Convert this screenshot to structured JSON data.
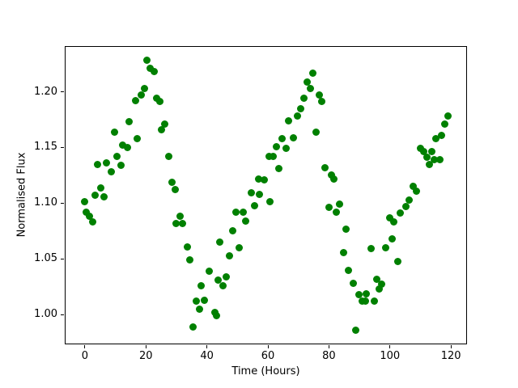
{
  "figure": {
    "background": "#ffffff",
    "frame_color": "#000000"
  },
  "chart_data": {
    "type": "scatter",
    "title": "",
    "xlabel": "Time (Hours)",
    "ylabel": "Normalised Flux",
    "xlim": [
      -6.61,
      125.0
    ],
    "ylim": [
      0.9733,
      1.241
    ],
    "grid": false,
    "legend": "none",
    "xticks": [
      0,
      20,
      40,
      60,
      80,
      100,
      120
    ],
    "xtick_labels": [
      "0",
      "20",
      "40",
      "60",
      "80",
      "100",
      "120"
    ],
    "yticks": [
      1.0,
      1.05,
      1.1,
      1.15,
      1.2
    ],
    "ytick_labels": [
      "1.00",
      "1.05",
      "1.10",
      "1.15",
      "1.20"
    ],
    "marker_color": "#008000",
    "marker_diameter_px": 9,
    "points": [
      [
        0.0,
        1.101
      ],
      [
        0.5,
        1.092
      ],
      [
        1.5,
        1.088
      ],
      [
        2.5,
        1.083
      ],
      [
        3.4,
        1.107
      ],
      [
        4.2,
        1.135
      ],
      [
        5.3,
        1.114
      ],
      [
        6.3,
        1.106
      ],
      [
        7.1,
        1.136
      ],
      [
        8.6,
        1.128
      ],
      [
        9.6,
        1.164
      ],
      [
        10.4,
        1.142
      ],
      [
        11.7,
        1.134
      ],
      [
        12.3,
        1.152
      ],
      [
        13.9,
        1.15
      ],
      [
        14.5,
        1.173
      ],
      [
        16.5,
        1.192
      ],
      [
        17.1,
        1.158
      ],
      [
        18.4,
        1.197
      ],
      [
        19.5,
        1.203
      ],
      [
        20.4,
        1.228
      ],
      [
        21.5,
        1.221
      ],
      [
        22.6,
        1.218
      ],
      [
        23.5,
        1.194
      ],
      [
        24.7,
        1.191
      ],
      [
        25.2,
        1.166
      ],
      [
        26.1,
        1.171
      ],
      [
        27.4,
        1.142
      ],
      [
        28.5,
        1.119
      ],
      [
        29.5,
        1.112
      ],
      [
        30.0,
        1.082
      ],
      [
        31.1,
        1.088
      ],
      [
        32.0,
        1.082
      ],
      [
        33.6,
        1.061
      ],
      [
        34.5,
        1.049
      ],
      [
        35.4,
        0.989
      ],
      [
        36.6,
        1.012
      ],
      [
        37.6,
        1.005
      ],
      [
        38.1,
        1.026
      ],
      [
        39.2,
        1.013
      ],
      [
        40.8,
        1.039
      ],
      [
        42.6,
        1.002
      ],
      [
        43.1,
        0.999
      ],
      [
        43.6,
        1.031
      ],
      [
        44.3,
        1.065
      ],
      [
        45.2,
        1.026
      ],
      [
        46.3,
        1.034
      ],
      [
        47.3,
        1.053
      ],
      [
        48.5,
        1.075
      ],
      [
        49.6,
        1.092
      ],
      [
        50.7,
        1.06
      ],
      [
        51.8,
        1.092
      ],
      [
        52.6,
        1.084
      ],
      [
        54.5,
        1.109
      ],
      [
        55.7,
        1.098
      ],
      [
        57.0,
        1.122
      ],
      [
        57.2,
        1.108
      ],
      [
        58.9,
        1.121
      ],
      [
        60.3,
        1.142
      ],
      [
        60.6,
        1.101
      ],
      [
        61.8,
        1.142
      ],
      [
        62.7,
        1.151
      ],
      [
        63.6,
        1.131
      ],
      [
        64.7,
        1.158
      ],
      [
        65.9,
        1.149
      ],
      [
        66.8,
        1.174
      ],
      [
        68.4,
        1.159
      ],
      [
        69.7,
        1.178
      ],
      [
        70.8,
        1.185
      ],
      [
        71.7,
        1.194
      ],
      [
        72.8,
        1.209
      ],
      [
        74.0,
        1.203
      ],
      [
        74.7,
        1.217
      ],
      [
        75.7,
        1.164
      ],
      [
        76.8,
        1.197
      ],
      [
        77.7,
        1.191
      ],
      [
        78.8,
        1.132
      ],
      [
        79.9,
        1.096
      ],
      [
        80.7,
        1.125
      ],
      [
        81.7,
        1.122
      ],
      [
        82.5,
        1.092
      ],
      [
        83.4,
        1.099
      ],
      [
        84.8,
        1.056
      ],
      [
        85.6,
        1.077
      ],
      [
        86.5,
        1.04
      ],
      [
        88.0,
        1.028
      ],
      [
        88.7,
        0.986
      ],
      [
        89.9,
        1.018
      ],
      [
        90.8,
        1.012
      ],
      [
        91.9,
        1.012
      ],
      [
        92.3,
        1.019
      ],
      [
        93.9,
        1.059
      ],
      [
        95.0,
        1.012
      ],
      [
        95.6,
        1.032
      ],
      [
        96.6,
        1.023
      ],
      [
        97.4,
        1.027
      ],
      [
        98.7,
        1.06
      ],
      [
        99.8,
        1.087
      ],
      [
        100.6,
        1.068
      ],
      [
        101.3,
        1.083
      ],
      [
        102.7,
        1.048
      ],
      [
        103.5,
        1.091
      ],
      [
        105.3,
        1.097
      ],
      [
        106.4,
        1.103
      ],
      [
        107.6,
        1.115
      ],
      [
        108.8,
        1.111
      ],
      [
        110.0,
        1.149
      ],
      [
        111.0,
        1.146
      ],
      [
        112.2,
        1.141
      ],
      [
        113.0,
        1.135
      ],
      [
        113.7,
        1.146
      ],
      [
        114.6,
        1.139
      ],
      [
        115.0,
        1.158
      ],
      [
        116.3,
        1.139
      ],
      [
        116.9,
        1.161
      ],
      [
        118.0,
        1.171
      ],
      [
        119.0,
        1.178
      ]
    ]
  }
}
